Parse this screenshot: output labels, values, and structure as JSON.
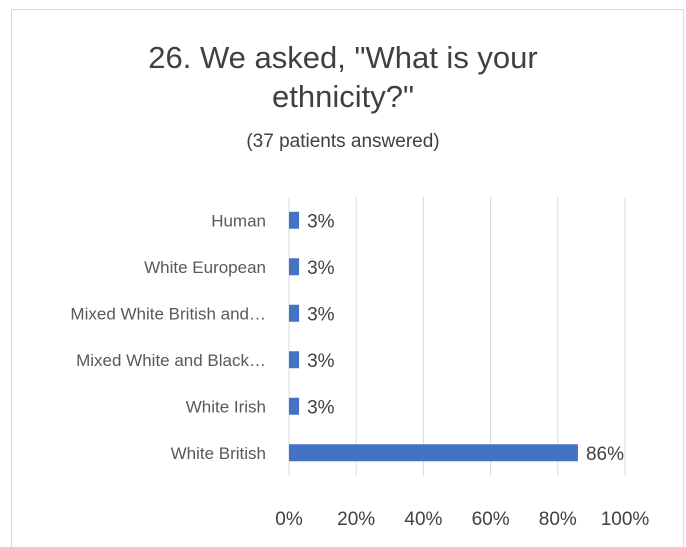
{
  "title": "26. We asked, \"What is your\nethnicity?\"",
  "subtitle": "(37 patients answered)",
  "colors": {
    "bar": "#4472c4",
    "grid": "#d9d9d9",
    "text": "#404040",
    "label": "#595959"
  },
  "chart_data": {
    "type": "bar",
    "orientation": "horizontal",
    "title": "26. We asked, \"What is your ethnicity?\"",
    "subtitle": "(37 patients answered)",
    "categories": [
      "Human",
      "White European",
      "Mixed White British and…",
      "Mixed White and Black…",
      "White Irish",
      "White British"
    ],
    "values": [
      3,
      3,
      3,
      3,
      3,
      86
    ],
    "data_labels": [
      "3%",
      "3%",
      "3%",
      "3%",
      "3%",
      "86%"
    ],
    "xlim": [
      0,
      100
    ],
    "x_ticks": [
      0,
      20,
      40,
      60,
      80,
      100
    ],
    "x_tick_labels": [
      "0%",
      "20%",
      "40%",
      "60%",
      "80%",
      "100%"
    ],
    "grid": true,
    "legend": "none"
  }
}
